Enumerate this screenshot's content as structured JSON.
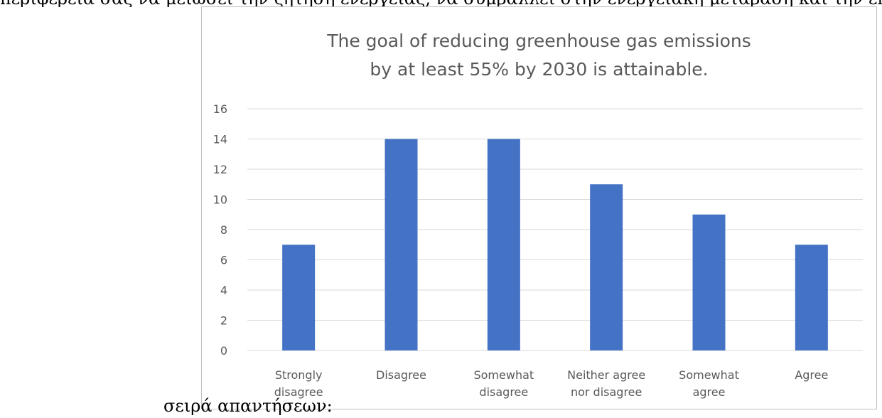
{
  "document": {
    "top_text": "περιφέρεια σας να μειώσει την ζήτηση ενέργειας, να συμβάλλει στην ενεργειακή μετάβαση και την επίτευξη των στόχων",
    "caption": "σειρά απαντήσεων:"
  },
  "chart_data": {
    "type": "bar",
    "title_lines": [
      "The goal of reducing greenhouse gas emissions",
      "by at least 55% by 2030 is attainable."
    ],
    "categories": [
      [
        "Strongly",
        "disagree"
      ],
      [
        "Disagree"
      ],
      [
        "Somewhat",
        "disagree"
      ],
      [
        "Neither agree",
        "nor disagree"
      ],
      [
        "Somewhat",
        "agree"
      ],
      [
        "Agree"
      ]
    ],
    "values": [
      7,
      14,
      14,
      11,
      9,
      7
    ],
    "ylim": [
      0,
      16
    ],
    "yticks": [
      0,
      2,
      4,
      6,
      8,
      10,
      12,
      14,
      16
    ],
    "grid": true,
    "legend": "none",
    "bar_color": "#4472C4",
    "grid_color": "#d9d9d9",
    "text_color": "#595959"
  }
}
